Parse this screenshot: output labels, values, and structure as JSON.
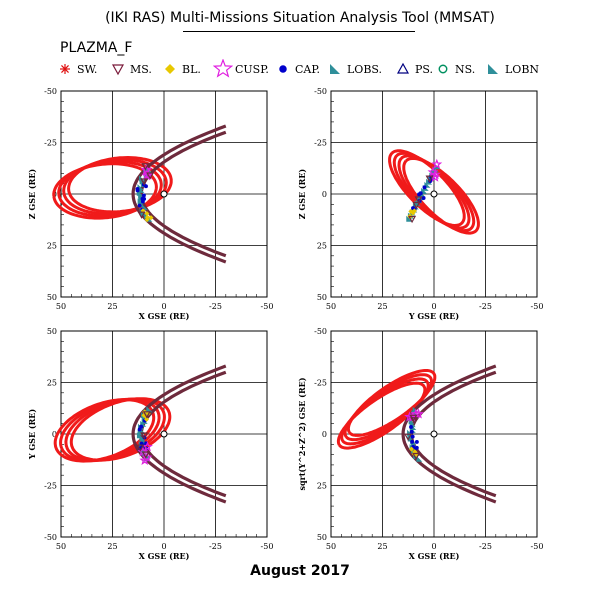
{
  "header": {
    "title": "(IKI RAS) Multi-Missions Situation Analysis Tool (MMSAT)",
    "mission": "PLAZMA_F"
  },
  "legend": [
    {
      "label": "SW.",
      "icon": "asterisk-icon",
      "color": "#e01010"
    },
    {
      "label": "MS.",
      "icon": "triangle-down-icon",
      "color": "#7a1a3a"
    },
    {
      "label": "BL.",
      "icon": "diamond-icon",
      "color": "#e8c800"
    },
    {
      "label": "CUSP.",
      "icon": "star-icon",
      "color": "#e020e0"
    },
    {
      "label": "CAP.",
      "icon": "filled-circle-icon",
      "color": "#0000cc"
    },
    {
      "label": "LOBS.",
      "icon": "triangle-corner-icon",
      "color": "#2f8f9a"
    },
    {
      "label": "PS.",
      "icon": "triangle-up-icon",
      "color": "#000080"
    },
    {
      "label": "NS.",
      "icon": "circle-icon",
      "color": "#009060"
    },
    {
      "label": "LOBN",
      "icon": "triangle-corner-icon",
      "color": "#2f8f9a"
    }
  ],
  "footer": {
    "date": "August 2017"
  },
  "colors": {
    "solar_wind": "#f01a1a",
    "magnetosheath": "#6e2a3c",
    "lobes": "#2f8f9a",
    "cusp": "#e020e0",
    "cap": "#0000cc",
    "boundary_layer": "#e8c800",
    "plasma_sheet": "#000080"
  },
  "chart_data": [
    {
      "type": "scatter",
      "projection": "XZ",
      "xlabel": "X GSE (RE)",
      "ylabel": "Z GSE (RE)",
      "xlim": [
        50,
        -50
      ],
      "ylim": [
        -50,
        50
      ],
      "xticks": [
        50,
        25,
        0,
        -25,
        -50
      ],
      "yticks": [
        -50,
        -25,
        0,
        25,
        50
      ],
      "grid": true,
      "earth": [
        0,
        0
      ],
      "boundaries": [
        {
          "name": "magnetopause",
          "subsolar": 11,
          "flank": 30,
          "xmin": -30
        },
        {
          "name": "bow-shock",
          "subsolar": 15,
          "flank": 33,
          "xmin": -30
        }
      ],
      "orbit": {
        "center": [
          25,
          -3
        ],
        "semi_axis_x": 25,
        "semi_axis_y": 13,
        "tilt_deg": 6,
        "loops": 4,
        "loop_spacing": 2.5
      }
    },
    {
      "type": "scatter",
      "projection": "YZ",
      "xlabel": "Y GSE (RE)",
      "ylabel": "Z GSE (RE)",
      "xlim": [
        50,
        -50
      ],
      "ylim": [
        -50,
        50
      ],
      "xticks": [
        50,
        25,
        0,
        -25,
        -50
      ],
      "yticks": [
        -50,
        -25,
        0,
        25,
        50
      ],
      "grid": true,
      "earth": [
        0,
        0
      ],
      "orbit": {
        "center": [
          0,
          -1
        ],
        "semi_axis_x": 24,
        "semi_axis_y": 9,
        "tilt_deg": -45,
        "loops": 4,
        "loop_spacing": 2.5
      }
    },
    {
      "type": "scatter",
      "projection": "XY",
      "xlabel": "X GSE (RE)",
      "ylabel": "Y GSE (RE)",
      "xlim": [
        50,
        -50
      ],
      "ylim": [
        50,
        -50
      ],
      "xticks": [
        50,
        25,
        0,
        -25,
        -50
      ],
      "yticks": [
        -50,
        -25,
        0,
        25,
        50
      ],
      "grid": true,
      "earth": [
        0,
        0
      ],
      "boundaries": [
        {
          "name": "magnetopause",
          "subsolar": 11,
          "flank": 30,
          "xmin": -30
        },
        {
          "name": "bow-shock",
          "subsolar": 15,
          "flank": 33,
          "xmin": -30
        }
      ],
      "orbit": {
        "center": [
          25,
          2
        ],
        "semi_axis_x": 25,
        "semi_axis_y": 13,
        "tilt_deg": -20,
        "loops": 4,
        "loop_spacing": 2.5
      }
    },
    {
      "type": "scatter",
      "projection": "X-sqrt(Y2+Z2)",
      "xlabel": "X GSE (RE)",
      "ylabel": "sqrt(Y^2+Z^2) GSE (RE)",
      "xlim": [
        50,
        -50
      ],
      "ylim": [
        -50,
        50
      ],
      "xticks": [
        50,
        25,
        0,
        -25,
        -50
      ],
      "yticks": [
        -50,
        -25,
        0,
        25,
        50
      ],
      "grid": true,
      "earth": [
        0,
        0
      ],
      "boundaries": [
        {
          "name": "magnetopause",
          "subsolar": 11,
          "flank": 30,
          "xmin": -30
        },
        {
          "name": "bow-shock",
          "subsolar": 15,
          "flank": 33,
          "xmin": -30
        }
      ],
      "orbit": {
        "center": [
          23,
          -12
        ],
        "semi_axis_x": 25,
        "semi_axis_y": 8,
        "tilt_deg": 35,
        "loops": 4,
        "loop_spacing": 2.5
      }
    }
  ]
}
